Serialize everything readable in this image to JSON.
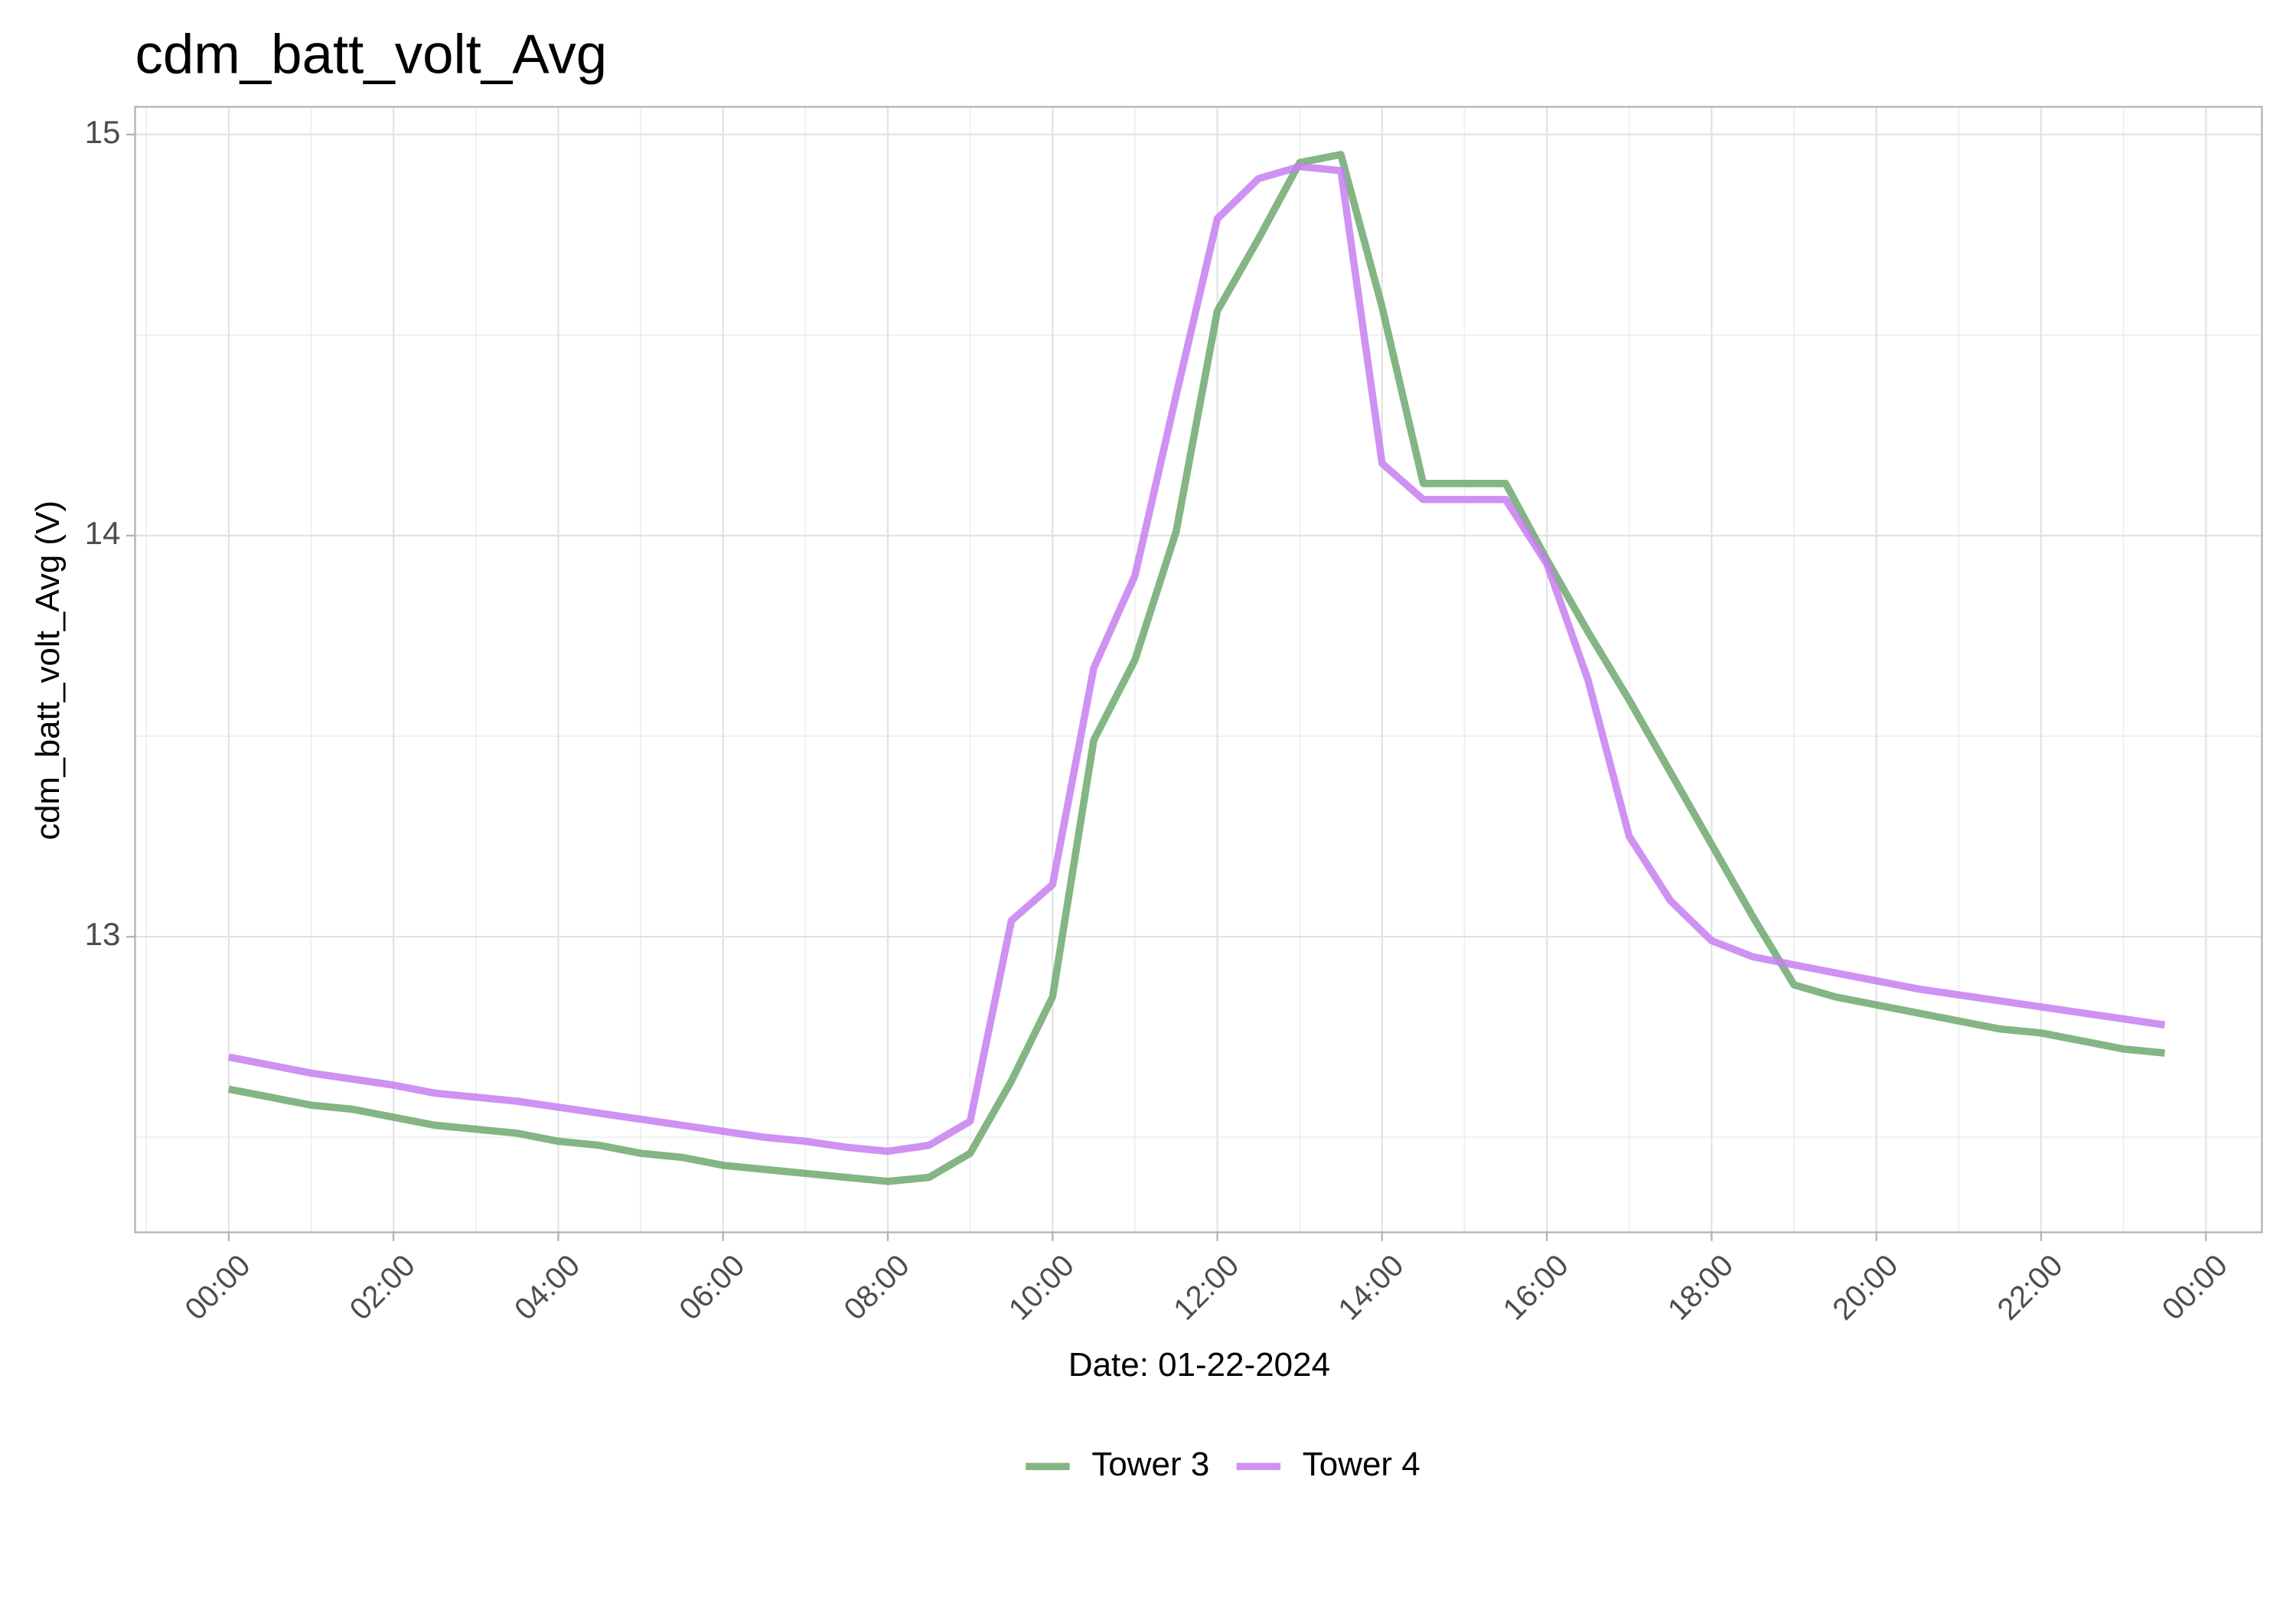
{
  "chart_data": {
    "type": "line",
    "title": "cdm_batt_volt_Avg",
    "x_label": "Date: 01-22-2024",
    "y_label": "cdm_batt_volt_Avg (V)",
    "x": [
      0,
      0.5,
      1,
      1.5,
      2,
      2.5,
      3,
      3.5,
      4,
      4.5,
      5,
      5.5,
      6,
      6.5,
      7,
      7.5,
      8,
      8.5,
      9,
      9.5,
      10,
      10.5,
      11,
      11.5,
      12,
      12.5,
      13,
      13.5,
      14,
      14.5,
      15,
      15.5,
      16,
      16.5,
      17,
      17.5,
      18,
      18.5,
      19,
      19.5,
      20,
      20.5,
      21,
      21.5,
      22,
      22.5,
      23,
      23.5
    ],
    "series": [
      {
        "name": "Tower 3",
        "color": "#6fa86f",
        "values": [
          12.62,
          12.6,
          12.58,
          12.57,
          12.55,
          12.53,
          12.52,
          12.51,
          12.49,
          12.48,
          12.46,
          12.45,
          12.43,
          12.42,
          12.41,
          12.4,
          12.39,
          12.4,
          12.46,
          12.64,
          12.85,
          13.49,
          13.69,
          14.01,
          14.56,
          14.74,
          14.93,
          14.95,
          14.57,
          14.13,
          14.13,
          14.13,
          13.94,
          13.76,
          13.59,
          13.41,
          13.23,
          13.05,
          12.88,
          12.85,
          12.83,
          12.81,
          12.79,
          12.77,
          12.76,
          12.74,
          12.72,
          12.71
        ]
      },
      {
        "name": "Tower 4",
        "color": "#c77ef0",
        "values": [
          12.7,
          12.68,
          12.66,
          12.645,
          12.63,
          12.61,
          12.6,
          12.59,
          12.575,
          12.56,
          12.545,
          12.53,
          12.515,
          12.5,
          12.49,
          12.475,
          12.465,
          12.48,
          12.54,
          13.04,
          13.13,
          13.67,
          13.9,
          14.35,
          14.79,
          14.89,
          14.92,
          14.91,
          14.18,
          14.09,
          14.09,
          14.09,
          13.93,
          13.64,
          13.25,
          13.09,
          12.99,
          12.95,
          12.93,
          12.91,
          12.89,
          12.87,
          12.855,
          12.84,
          12.825,
          12.81,
          12.795,
          12.78
        ]
      }
    ],
    "xlim": [
      -1.137,
      24.68
    ],
    "xticks": [
      {
        "value": 0,
        "label": "00:00"
      },
      {
        "value": 2,
        "label": "02:00"
      },
      {
        "value": 4,
        "label": "04:00"
      },
      {
        "value": 6,
        "label": "06:00"
      },
      {
        "value": 8,
        "label": "08:00"
      },
      {
        "value": 10,
        "label": "10:00"
      },
      {
        "value": 12,
        "label": "12:00"
      },
      {
        "value": 14,
        "label": "14:00"
      },
      {
        "value": 16,
        "label": "16:00"
      },
      {
        "value": 18,
        "label": "18:00"
      },
      {
        "value": 20,
        "label": "20:00"
      },
      {
        "value": 22,
        "label": "22:00"
      },
      {
        "value": 24,
        "label": "00:00"
      }
    ],
    "ylim": [
      12.263,
      15.069
    ],
    "yticks": [
      13,
      14,
      15
    ],
    "grid": true,
    "legend": "bottom"
  }
}
